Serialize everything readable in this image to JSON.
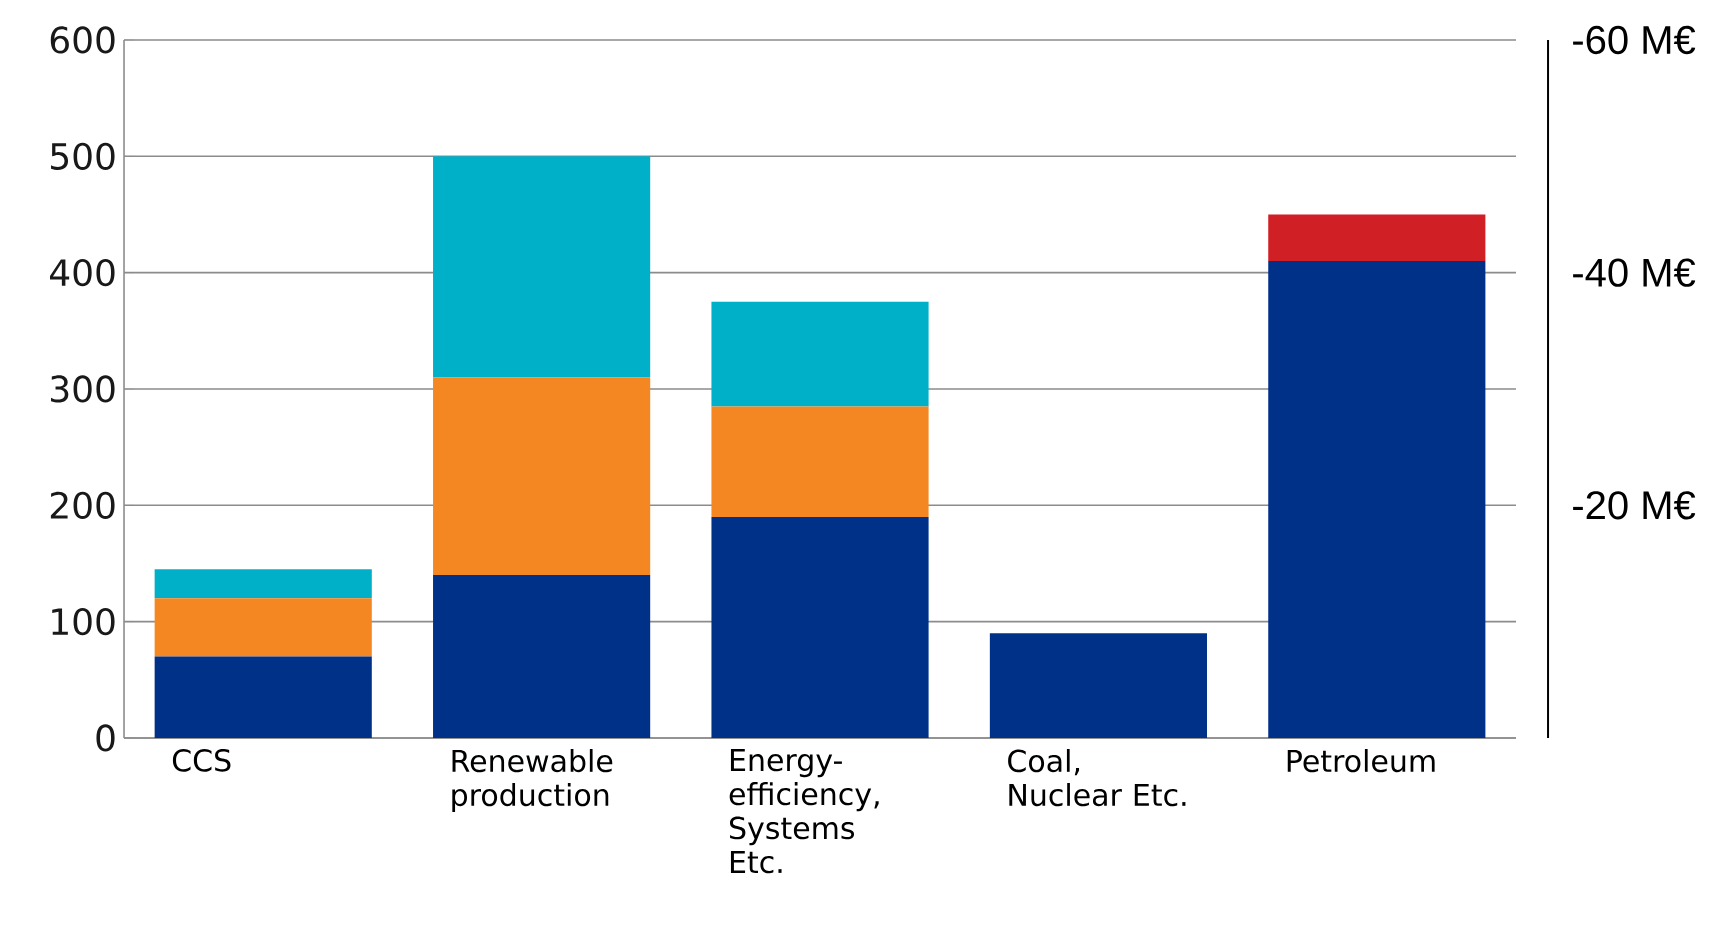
{
  "chart_data": {
    "type": "bar",
    "stacked": true,
    "categories": [
      "CCS",
      "Renewable production",
      "Energy-efficiency, Systems Etc.",
      "Coal, Nuclear Etc.",
      "Petroleum"
    ],
    "series": [
      {
        "color": "#003189",
        "values": [
          70,
          140,
          190,
          90,
          410
        ]
      },
      {
        "color": "#f58722",
        "values": [
          50,
          170,
          95,
          null,
          null
        ]
      },
      {
        "color": "#00b0c8",
        "values": [
          25,
          190,
          90,
          null,
          null
        ]
      },
      {
        "color": "#d11f26",
        "values": [
          null,
          null,
          null,
          null,
          40
        ]
      }
    ],
    "ylim": [
      0,
      600
    ],
    "yticks": [
      0,
      100,
      200,
      300,
      400,
      500,
      600
    ],
    "y2lim": [
      0,
      -60
    ],
    "y2ticks": [
      {
        "value": -20,
        "label": "-20 M€"
      },
      {
        "value": -40,
        "label": "-40 M€"
      },
      {
        "value": -60,
        "label": "-60 M€"
      }
    ],
    "grid": "y"
  }
}
